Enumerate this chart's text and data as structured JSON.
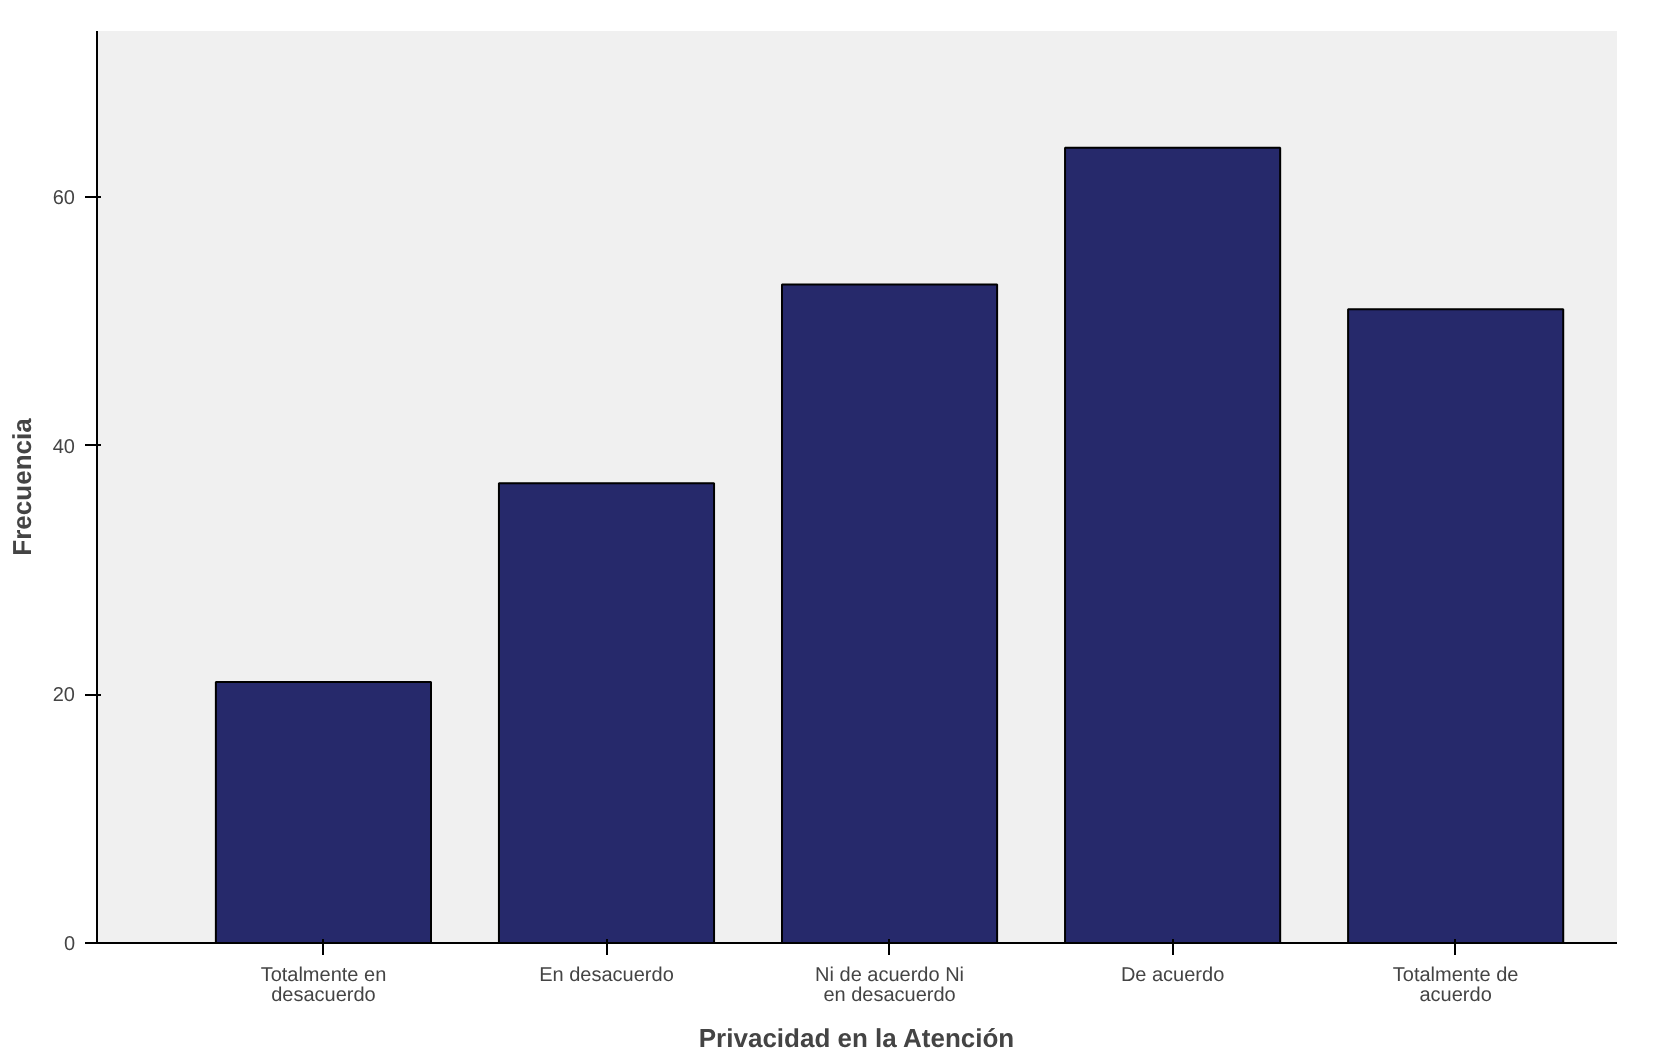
{
  "chart_data": {
    "type": "bar",
    "xlabel": "Privacidad en la Atención",
    "ylabel": "Frecuencia",
    "categories": [
      "Totalmente en desacuerdo",
      "En desacuerdo",
      "Ni de acuerdo Ni en desacuerdo",
      "De acuerdo",
      "Totalmente de acuerdo"
    ],
    "values": [
      21,
      37,
      53,
      64,
      51
    ],
    "color": "#26296b",
    "ylim": [
      0,
      73.4
    ],
    "yticks": [
      0,
      20,
      40,
      60
    ],
    "grid": false
  }
}
